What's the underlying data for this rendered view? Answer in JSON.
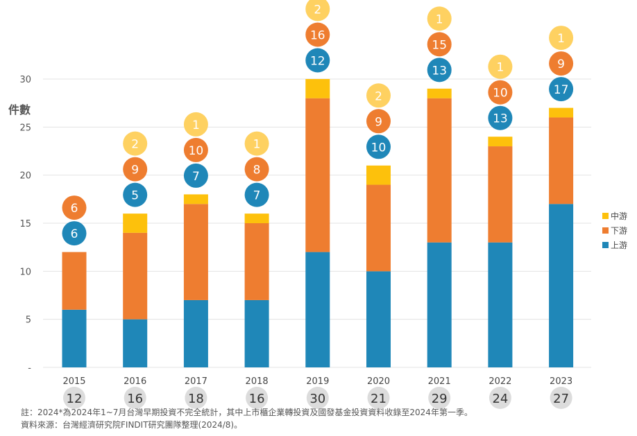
{
  "chart_data": {
    "type": "bar",
    "stacked": true,
    "ylabel": "件數",
    "ylim": [
      0,
      30
    ],
    "yticks": [
      {
        "value": 0,
        "label": "-"
      },
      {
        "value": 5,
        "label": "5"
      },
      {
        "value": 10,
        "label": "10"
      },
      {
        "value": 15,
        "label": "15"
      },
      {
        "value": 20,
        "label": "20"
      },
      {
        "value": 25,
        "label": "25"
      },
      {
        "value": 30,
        "label": "30"
      }
    ],
    "grid": true,
    "legend_position": "right",
    "categories": [
      "2015",
      "2016",
      "2017",
      "2018",
      "2019",
      "2020",
      "2021",
      "2022",
      "2023"
    ],
    "series": [
      {
        "name": "上游",
        "color": "#1f87b8",
        "values": [
          6,
          5,
          7,
          7,
          12,
          10,
          13,
          13,
          17
        ]
      },
      {
        "name": "下游",
        "color": "#ee7d30",
        "values": [
          6,
          9,
          10,
          8,
          16,
          9,
          15,
          10,
          9
        ]
      },
      {
        "name": "中游",
        "color": "#fdc10c",
        "values": [
          0,
          2,
          1,
          1,
          2,
          2,
          1,
          1,
          1
        ]
      }
    ],
    "bubble_labels": [
      {
        "series": "上游",
        "color": "#1f87b8",
        "labels": [
          "6",
          "5",
          "7",
          "7",
          "12",
          "10",
          "13",
          "13",
          "17"
        ]
      },
      {
        "series": "下游",
        "color": "#ee7d30",
        "labels": [
          "6",
          "9",
          "10",
          "8",
          "16",
          "9",
          "15",
          "10",
          "9"
        ]
      },
      {
        "series": "中游",
        "color": "#fed161",
        "labels": [
          "",
          "2",
          "1",
          "1",
          "2",
          "2",
          "1",
          "1",
          "1"
        ]
      }
    ],
    "totals": [
      "12",
      "16",
      "18",
      "16",
      "30",
      "21",
      "29",
      "24",
      "27"
    ],
    "total_badge_color": "#dcdcdc"
  },
  "footnote": "註：2024*為2024年1~7月台灣早期投資不完全統計，其中上市櫃企業轉投資及國發基金投資資料收錄至2024年第一季。",
  "source": "資料來源：台灣經濟研究院FINDIT研究團隊整理(2024/8)。"
}
